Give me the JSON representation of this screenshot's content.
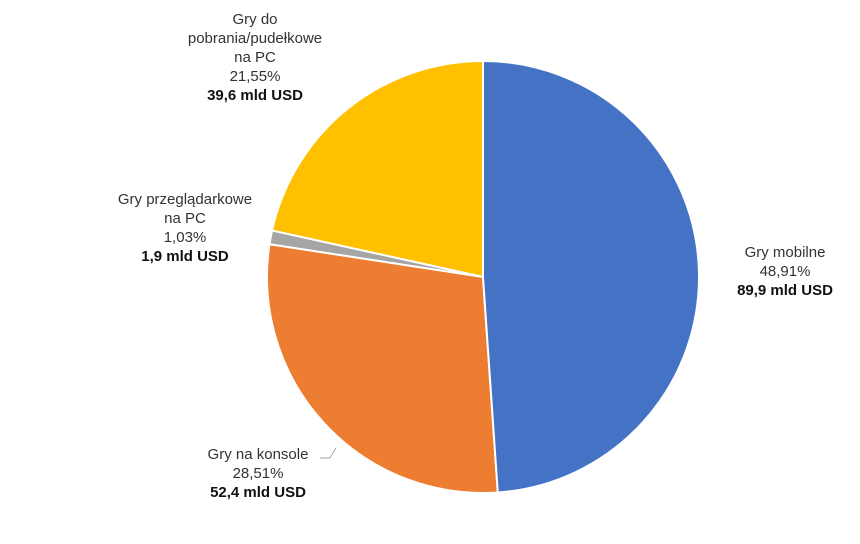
{
  "chart_data": {
    "type": "pie",
    "categories": [
      "Gry mobilne",
      "Gry na konsole",
      "Gry przeglądarkowe na PC",
      "Gry do pobrania/pudełkowe na PC"
    ],
    "values": [
      48.91,
      28.51,
      1.03,
      21.55
    ],
    "value_labels": [
      "48,91%",
      "28,51%",
      "1,03%",
      "21,55%"
    ],
    "amount_labels": [
      "89,9 mld USD",
      "52,4 mld USD",
      "1,9 mld USD",
      "39,6 mld USD"
    ],
    "colors": [
      "#4472c4",
      "#ed7d31",
      "#a5a5a5",
      "#ffc000"
    ]
  }
}
